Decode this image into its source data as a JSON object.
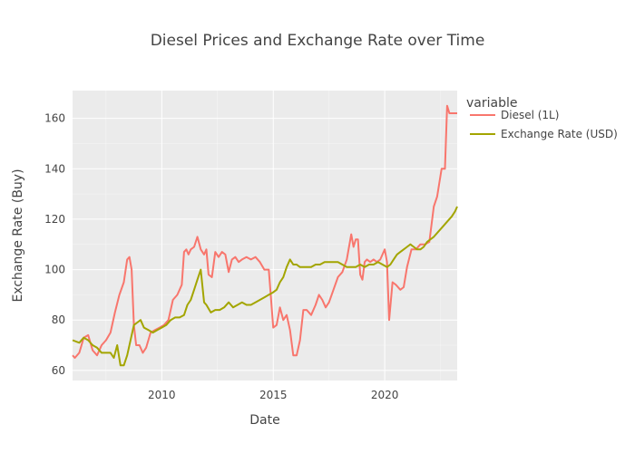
{
  "chart_data": {
    "type": "line",
    "title": "Diesel Prices and Exchange Rate over Time",
    "xlabel": "Date",
    "ylabel": "Exchange Rate (Buy)",
    "xlim": [
      2006.0,
      2023.25
    ],
    "ylim": [
      56,
      171
    ],
    "xticks": [
      2010,
      2015,
      2020
    ],
    "yticks": [
      60,
      80,
      100,
      120,
      140,
      160
    ],
    "grid": true,
    "legend": {
      "title": "variable",
      "position": "right"
    },
    "colors": {
      "plot_background": "#ebebeb",
      "grid": "#ffffff",
      "Diesel (1L)": "#f8766d",
      "Exchange Rate (USD)": "#a3a500"
    },
    "series": [
      {
        "name": "Diesel (1L)",
        "x": [
          2006.0,
          2006.1,
          2006.3,
          2006.5,
          2006.7,
          2006.9,
          2007.1,
          2007.3,
          2007.5,
          2007.7,
          2007.9,
          2008.1,
          2008.3,
          2008.45,
          2008.55,
          2008.65,
          2008.75,
          2008.85,
          2009.0,
          2009.15,
          2009.3,
          2009.5,
          2009.7,
          2009.9,
          2010.1,
          2010.3,
          2010.5,
          2010.7,
          2010.9,
          2011.0,
          2011.1,
          2011.2,
          2011.3,
          2011.45,
          2011.6,
          2011.75,
          2011.9,
          2012.0,
          2012.1,
          2012.25,
          2012.4,
          2012.55,
          2012.7,
          2012.85,
          2013.0,
          2013.15,
          2013.3,
          2013.45,
          2013.6,
          2013.8,
          2014.0,
          2014.2,
          2014.4,
          2014.6,
          2014.8,
          2015.0,
          2015.15,
          2015.3,
          2015.45,
          2015.6,
          2015.75,
          2015.9,
          2016.05,
          2016.2,
          2016.35,
          2016.5,
          2016.7,
          2016.9,
          2017.05,
          2017.2,
          2017.35,
          2017.5,
          2017.7,
          2017.9,
          2018.1,
          2018.3,
          2018.5,
          2018.6,
          2018.7,
          2018.8,
          2018.9,
          2019.0,
          2019.1,
          2019.2,
          2019.35,
          2019.5,
          2019.65,
          2019.8,
          2020.0,
          2020.1,
          2020.2,
          2020.35,
          2020.5,
          2020.7,
          2020.85,
          2021.0,
          2021.2,
          2021.4,
          2021.6,
          2021.8,
          2022.0,
          2022.2,
          2022.35,
          2022.55,
          2022.7,
          2022.8,
          2022.9,
          2023.0,
          2023.15,
          2023.25
        ],
        "values": [
          66,
          65,
          67,
          73,
          74,
          68,
          66,
          70,
          72,
          75,
          83,
          90,
          95,
          104,
          105,
          100,
          78,
          70,
          70,
          67,
          69,
          75,
          76,
          77,
          78,
          80,
          88,
          90,
          94,
          107,
          108,
          106,
          108,
          109,
          113,
          108,
          106,
          108,
          98,
          97,
          107,
          105,
          107,
          106,
          99,
          104,
          105,
          103,
          104,
          105,
          104,
          105,
          103,
          100,
          100,
          77,
          78,
          85,
          80,
          82,
          76,
          66,
          66,
          72,
          84,
          84,
          82,
          86,
          90,
          88,
          85,
          87,
          92,
          97,
          99,
          104,
          114,
          109,
          112,
          112,
          98,
          96,
          103,
          104,
          103,
          104,
          103,
          104,
          108,
          103,
          80,
          95,
          94,
          92,
          93,
          101,
          108,
          108,
          110,
          110,
          111,
          125,
          129,
          140,
          140,
          165,
          162,
          162,
          162,
          162
        ]
      },
      {
        "name": "Exchange Rate (USD)",
        "x": [
          2006.0,
          2006.3,
          2006.5,
          2006.7,
          2006.9,
          2007.1,
          2007.3,
          2007.5,
          2007.7,
          2007.85,
          2008.0,
          2008.15,
          2008.3,
          2008.45,
          2008.6,
          2008.75,
          2008.9,
          2009.05,
          2009.2,
          2009.4,
          2009.6,
          2009.8,
          2010.0,
          2010.2,
          2010.4,
          2010.6,
          2010.8,
          2011.0,
          2011.15,
          2011.3,
          2011.45,
          2011.6,
          2011.75,
          2011.9,
          2012.0,
          2012.2,
          2012.4,
          2012.6,
          2012.8,
          2013.0,
          2013.2,
          2013.4,
          2013.6,
          2013.8,
          2014.0,
          2014.2,
          2014.4,
          2014.6,
          2014.8,
          2015.0,
          2015.15,
          2015.3,
          2015.45,
          2015.6,
          2015.75,
          2015.9,
          2016.05,
          2016.2,
          2016.35,
          2016.5,
          2016.7,
          2016.9,
          2017.1,
          2017.3,
          2017.5,
          2017.7,
          2017.9,
          2018.1,
          2018.3,
          2018.5,
          2018.7,
          2018.9,
          2019.1,
          2019.3,
          2019.5,
          2019.7,
          2019.9,
          2020.1,
          2020.25,
          2020.4,
          2020.55,
          2020.7,
          2020.85,
          2021.0,
          2021.15,
          2021.3,
          2021.45,
          2021.6,
          2021.75,
          2021.9,
          2022.05,
          2022.2,
          2022.4,
          2022.6,
          2022.8,
          2023.0,
          2023.15,
          2023.25
        ],
        "values": [
          72,
          71,
          73,
          72,
          70,
          69,
          67,
          67,
          67,
          65,
          70,
          62,
          62,
          66,
          72,
          78,
          79,
          80,
          77,
          76,
          75,
          76,
          77,
          78,
          80,
          81,
          81,
          82,
          86,
          88,
          92,
          96,
          100,
          87,
          86,
          83,
          84,
          84,
          85,
          87,
          85,
          86,
          87,
          86,
          86,
          87,
          88,
          89,
          90,
          91,
          92,
          95,
          97,
          101,
          104,
          102,
          102,
          101,
          101,
          101,
          101,
          102,
          102,
          103,
          103,
          103,
          103,
          102,
          101,
          101,
          101,
          102,
          101,
          102,
          102,
          103,
          102,
          101,
          102,
          104,
          106,
          107,
          108,
          109,
          110,
          109,
          108,
          108,
          109,
          111,
          112,
          113,
          115,
          117,
          119,
          121,
          123,
          125
        ]
      }
    ]
  }
}
